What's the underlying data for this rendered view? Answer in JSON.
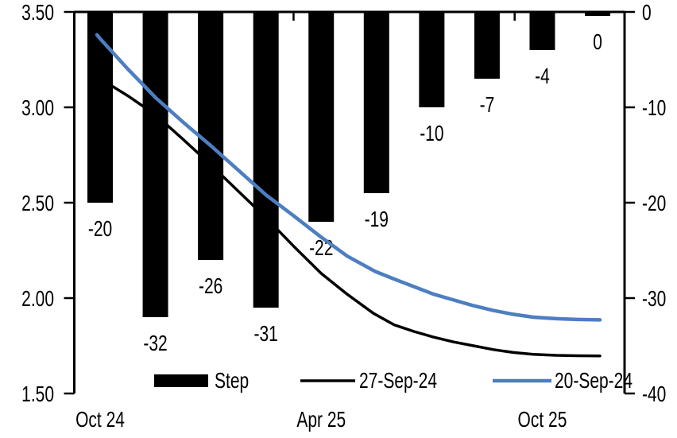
{
  "chart_data": {
    "type": "combo-bar-line",
    "title": "",
    "background": "#ffffff",
    "left_axis": {
      "side": "left",
      "min": 1.5,
      "max": 3.5,
      "ticks": [
        {
          "value": 3.5,
          "label": "3.50"
        },
        {
          "value": 3.0,
          "label": "3.00"
        },
        {
          "value": 2.5,
          "label": "2.50"
        },
        {
          "value": 2.0,
          "label": "2.00"
        },
        {
          "value": 1.5,
          "label": "1.50"
        }
      ]
    },
    "right_axis": {
      "side": "right",
      "min": -40,
      "max": 0,
      "ticks": [
        {
          "value": 0,
          "label": "0"
        },
        {
          "value": -10,
          "label": "-10"
        },
        {
          "value": -20,
          "label": "-20"
        },
        {
          "value": -30,
          "label": "-30"
        },
        {
          "value": -40,
          "label": "-40"
        }
      ]
    },
    "x_axis": {
      "labels": [
        {
          "text": "Oct 24",
          "bar_index": 0
        },
        {
          "text": "Apr 25",
          "bar_index": 4
        },
        {
          "text": "Oct 25",
          "bar_index": 8
        }
      ],
      "boundary_tick_positions": [
        3.5,
        7.5
      ]
    },
    "bars": {
      "name": "Step",
      "axis": "right",
      "color": "#000000",
      "values": [
        -20,
        -32,
        -26,
        -31,
        -22,
        -19,
        -10,
        -7,
        -4,
        0
      ],
      "labels": [
        "-20",
        "-32",
        "-26",
        "-31",
        "-22",
        "-19",
        "-10",
        "-7",
        "-4",
        "0"
      ]
    },
    "lines": [
      {
        "name": "27-Sep-24",
        "axis": "left",
        "color": "#000000",
        "width": 3.5,
        "points": [
          [
            122,
            3.17
          ],
          [
            126,
            3.15
          ],
          [
            161,
            3.06
          ],
          [
            196,
            2.96
          ],
          [
            231,
            2.83
          ],
          [
            265,
            2.7
          ],
          [
            300,
            2.56
          ],
          [
            335,
            2.42
          ],
          [
            370,
            2.27
          ],
          [
            404,
            2.13
          ],
          [
            437,
            2.02
          ],
          [
            470,
            1.92
          ],
          [
            496,
            1.86
          ],
          [
            521,
            1.825
          ],
          [
            546,
            1.795
          ],
          [
            571,
            1.77
          ],
          [
            596,
            1.75
          ],
          [
            621,
            1.73
          ],
          [
            646,
            1.715
          ],
          [
            671,
            1.705
          ],
          [
            700,
            1.7
          ],
          [
            726,
            1.698
          ],
          [
            755,
            1.697
          ]
        ]
      },
      {
        "name": "20-Sep-24",
        "axis": "left",
        "color": "#4d7ec2",
        "width": 4.5,
        "points": [
          [
            122,
            3.38
          ],
          [
            126,
            3.36
          ],
          [
            161,
            3.2
          ],
          [
            196,
            3.05
          ],
          [
            231,
            2.92
          ],
          [
            265,
            2.8
          ],
          [
            300,
            2.67
          ],
          [
            335,
            2.54
          ],
          [
            370,
            2.43
          ],
          [
            404,
            2.32
          ],
          [
            437,
            2.22
          ],
          [
            472,
            2.14
          ],
          [
            496,
            2.1
          ],
          [
            521,
            2.06
          ],
          [
            546,
            2.02
          ],
          [
            571,
            1.99
          ],
          [
            596,
            1.96
          ],
          [
            621,
            1.935
          ],
          [
            646,
            1.915
          ],
          [
            671,
            1.9
          ],
          [
            700,
            1.892
          ],
          [
            726,
            1.888
          ],
          [
            755,
            1.886
          ]
        ]
      }
    ],
    "legend": [
      {
        "label": "Step",
        "swatch": "bar",
        "color": "#000000"
      },
      {
        "label": "27-Sep-24",
        "swatch": "line",
        "color": "#000000"
      },
      {
        "label": "20-Sep-24",
        "swatch": "line",
        "color": "#4d7ec2"
      }
    ]
  }
}
